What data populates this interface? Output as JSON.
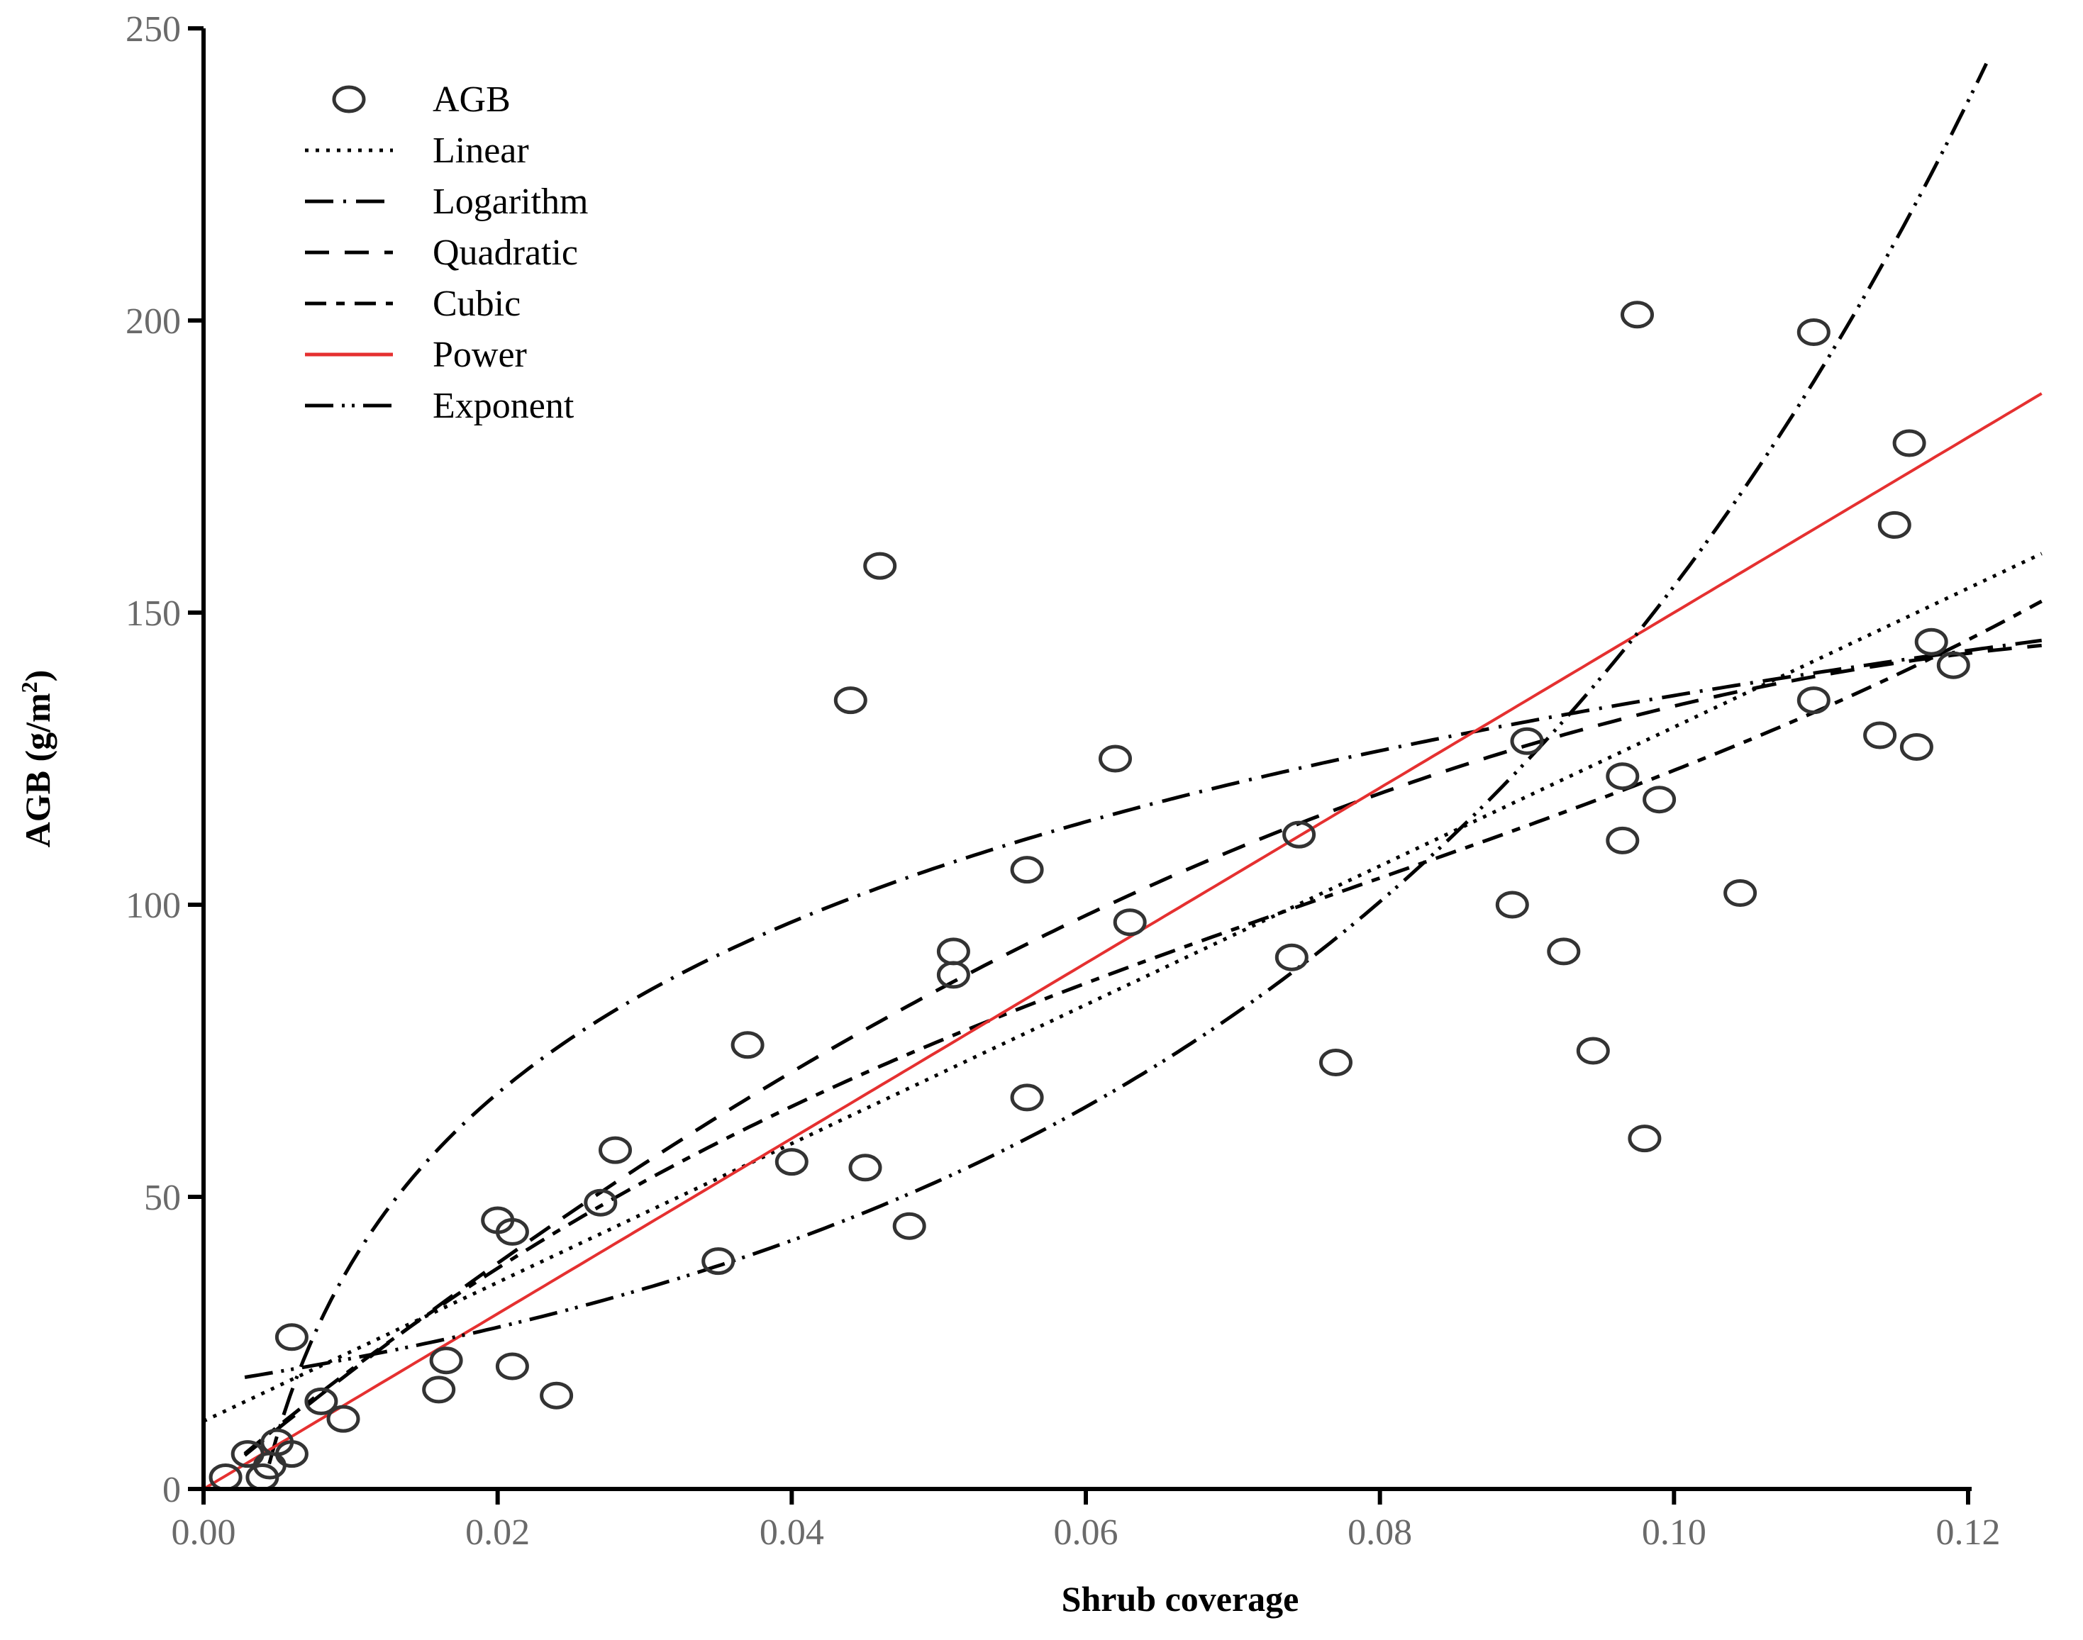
{
  "chart_data": {
    "type": "scatter",
    "xlabel": "Shrub coverage",
    "ylabel": "AGB (g/m",
    "ylabel_sup": "2",
    "ylabel_close": ")",
    "xlim": [
      0,
      0.125
    ],
    "ylim": [
      0,
      250
    ],
    "x_ticks": [
      0,
      0.02,
      0.04,
      0.06,
      0.08,
      0.1,
      0.12
    ],
    "x_tick_labels": [
      "0.00",
      "0.02",
      "0.04",
      "0.06",
      "0.08",
      "0.10",
      "0.12"
    ],
    "y_ticks": [
      0,
      50,
      100,
      150,
      200,
      250
    ],
    "y_tick_labels": [
      "0",
      "50",
      "100",
      "150",
      "200",
      "250"
    ],
    "legend": [
      {
        "label": "AGB",
        "kind": "marker"
      },
      {
        "label": "Linear",
        "kind": "line",
        "dash": "5,10",
        "color": "#000000"
      },
      {
        "label": "Logarithm",
        "kind": "line",
        "dash": "40,14,4,14",
        "color": "#000000"
      },
      {
        "label": "Quadratic",
        "kind": "line",
        "dash": "34,22",
        "color": "#000000"
      },
      {
        "label": "Cubic",
        "kind": "line",
        "dash": "30,14,12,14",
        "color": "#000000"
      },
      {
        "label": "Power",
        "kind": "line",
        "dash": "",
        "color": "#e53030"
      },
      {
        "label": "Exponent",
        "kind": "line",
        "dash": "40,12,4,10,4,12",
        "color": "#000000"
      }
    ],
    "points": [
      [
        0.0015,
        2
      ],
      [
        0.003,
        6
      ],
      [
        0.004,
        2
      ],
      [
        0.0045,
        4
      ],
      [
        0.005,
        8
      ],
      [
        0.006,
        6
      ],
      [
        0.006,
        26
      ],
      [
        0.008,
        15
      ],
      [
        0.0095,
        12
      ],
      [
        0.016,
        17
      ],
      [
        0.0165,
        22
      ],
      [
        0.02,
        46
      ],
      [
        0.021,
        44
      ],
      [
        0.021,
        21
      ],
      [
        0.024,
        16
      ],
      [
        0.027,
        49
      ],
      [
        0.028,
        58
      ],
      [
        0.035,
        39
      ],
      [
        0.037,
        76
      ],
      [
        0.04,
        56
      ],
      [
        0.044,
        135
      ],
      [
        0.045,
        55
      ],
      [
        0.046,
        158
      ],
      [
        0.048,
        45
      ],
      [
        0.051,
        92
      ],
      [
        0.051,
        88
      ],
      [
        0.056,
        106
      ],
      [
        0.056,
        67
      ],
      [
        0.062,
        125
      ],
      [
        0.063,
        97
      ],
      [
        0.074,
        91
      ],
      [
        0.0745,
        112
      ],
      [
        0.077,
        73
      ],
      [
        0.089,
        100
      ],
      [
        0.09,
        128
      ],
      [
        0.0925,
        92
      ],
      [
        0.0945,
        75
      ],
      [
        0.0965,
        122
      ],
      [
        0.0965,
        111
      ],
      [
        0.0975,
        201
      ],
      [
        0.098,
        60
      ],
      [
        0.099,
        118
      ],
      [
        0.1045,
        102
      ],
      [
        0.1095,
        198
      ],
      [
        0.1095,
        135
      ],
      [
        0.114,
        129
      ],
      [
        0.115,
        165
      ],
      [
        0.116,
        179
      ],
      [
        0.1165,
        127
      ],
      [
        0.1175,
        145
      ],
      [
        0.119,
        141
      ]
    ],
    "series": [
      {
        "name": "Linear",
        "model": "linear",
        "coef": [
          11.6,
          1188
        ],
        "x_range": [
          0,
          0.125
        ]
      },
      {
        "name": "Logarithm",
        "model": "log",
        "coef": [
          233.2,
          42.3
        ],
        "x_range": [
          0.004,
          0.125
        ]
      },
      {
        "name": "Quadratic",
        "model": "poly",
        "coef": [
          0,
          2080,
          -7400
        ],
        "x_range": [
          0.0028,
          0.125
        ]
      },
      {
        "name": "Cubic",
        "model": "poly",
        "coef": [
          0,
          2200,
          -17000,
          73000
        ],
        "x_range": [
          0.0028,
          0.125
        ]
      },
      {
        "name": "Power",
        "model": "power",
        "coef": [
          1500,
          1
        ],
        "x_range": [
          0,
          0.125
        ]
      },
      {
        "name": "Exponent",
        "model": "exp",
        "coef": [
          18,
          21.5
        ],
        "x_range": [
          0.0028,
          0.125
        ]
      }
    ]
  }
}
